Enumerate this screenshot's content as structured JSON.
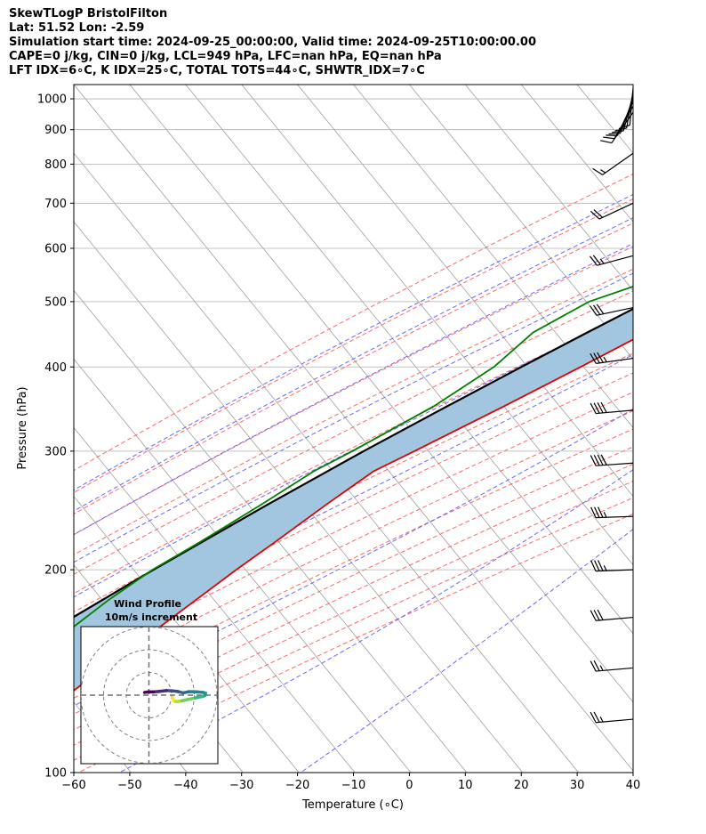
{
  "title_lines": [
    "SkewTLogP BristolFilton",
    "Lat: 51.52   Lon: -2.59",
    "Simulation start time: 2024-09-25_00:00:00, Valid time: 2024-09-25T10:00:00.00",
    "CAPE=0 j/kg, CIN=0 j/kg, LCL=949 hPa, LFC=nan hPa, EQ=nan hPa",
    "LFT IDX=6∘C, K IDX=25∘C, TOTAL TOTS=44∘C, SHWTR_IDX=7∘C"
  ],
  "chart_data": {
    "type": "skewt",
    "xlabel": "Temperature (∘C)",
    "ylabel": "Pressure (hPa)",
    "xlim": [
      -60,
      40
    ],
    "ylim": [
      1050,
      100
    ],
    "x_ticks": [
      -60,
      -50,
      -40,
      -30,
      -20,
      -10,
      0,
      10,
      20,
      30,
      40
    ],
    "x_tick_labels": [
      "−60",
      "−50",
      "−40",
      "−30",
      "−20",
      "−10",
      "0",
      "10",
      "20",
      "30",
      "40"
    ],
    "y_ticks": [
      1000,
      900,
      800,
      700,
      600,
      500,
      400,
      300,
      200,
      100
    ],
    "y_tick_labels": [
      "1000",
      "900",
      "800",
      "700",
      "600",
      "500",
      "400",
      "300",
      "200",
      "100"
    ],
    "grid": true,
    "colors": {
      "temperature": "#e00000",
      "dewpoint": "#008000",
      "parcel": "#000000",
      "cape_fill": "#a3c6e0",
      "dry_adiabat": "#ff4d4d",
      "moist_adiabat": "#4d4dff",
      "mixing_ratio": "#8a2be2",
      "isotherm": "#a0a0a0"
    },
    "series": [
      {
        "id": "temperature",
        "p": [
          1000,
          975,
          950,
          925,
          900,
          850,
          800,
          750,
          700,
          650,
          600,
          550,
          500,
          450,
          400,
          350,
          300,
          280,
          250,
          220,
          200,
          180,
          160,
          140,
          130,
          120,
          110,
          100
        ],
        "t": [
          13.7,
          11.9,
          10.6,
          10.2,
          10.3,
          10.0,
          8.2,
          5.6,
          2.7,
          -0.5,
          -4.6,
          -8.9,
          -15.1,
          -21.7,
          -28.5,
          -36.4,
          -45.9,
          -50.3,
          -53.9,
          -57.6,
          -60.5,
          -63.4,
          -66.6,
          -70.5,
          -72.4,
          -73.8,
          -74.7,
          -75.5
        ]
      },
      {
        "id": "dewpoint",
        "p": [
          1000,
          975,
          950,
          925,
          900,
          850,
          800,
          750,
          700,
          650,
          600,
          550,
          500,
          450,
          400,
          350,
          300,
          280,
          250,
          220,
          200,
          180,
          160,
          140,
          130,
          120,
          110,
          100
        ],
        "t": [
          10.5,
          10.5,
          9.5,
          7.5,
          6.0,
          4.8,
          4.0,
          2.8,
          0.2,
          -4.8,
          -12.5,
          -26.0,
          -36.5,
          -42.0,
          -44.0,
          -49.0,
          -57.0,
          -61.0,
          -65.5,
          -71.0,
          -75.5,
          -79.0,
          -82.0,
          -84.5,
          -86.5,
          -88.5,
          -91.0,
          -94.0
        ]
      },
      {
        "id": "parcel",
        "p": [
          1000,
          975,
          949,
          925,
          900,
          850,
          800,
          750,
          700,
          650,
          600,
          550,
          500,
          450,
          400,
          350,
          300,
          250,
          200,
          150,
          100
        ],
        "t": [
          12.5,
          11.1,
          9.6,
          8.3,
          6.9,
          3.9,
          0.7,
          -2.8,
          -6.6,
          -10.8,
          -15.4,
          -20.5,
          -26.1,
          -32.3,
          -39.1,
          -46.6,
          -55.0,
          -64.4,
          -75.3,
          -88.5,
          -106.3
        ]
      }
    ],
    "wind_barbs": {
      "p": [
        120,
        143,
        170,
        200,
        240,
        288,
        345,
        412,
        490,
        585,
        700,
        830,
        955,
        975,
        990,
        1002,
        1014,
        1026,
        1038
      ],
      "speed_kt": [
        25,
        25,
        30,
        35,
        35,
        40,
        40,
        35,
        30,
        25,
        20,
        15,
        10,
        10,
        10,
        10,
        10,
        10,
        10
      ],
      "direction_deg": [
        265,
        265,
        265,
        268,
        268,
        266,
        265,
        262,
        258,
        255,
        245,
        235,
        215,
        210,
        205,
        200,
        195,
        190,
        185
      ]
    },
    "hodograph": {
      "title": "Wind Profile",
      "subtitle": "10m/s increment",
      "rings_ms": [
        10,
        20,
        30
      ],
      "u": [
        10.5,
        10.7,
        11.0,
        11.8,
        12.8,
        14.5,
        17.2,
        20.5,
        24.0,
        24.8,
        25.0,
        23.8,
        21.3,
        19.8,
        17.5,
        15.1,
        12.7,
        10.0,
        7.7,
        4.4,
        1.9,
        -0.4,
        -1.9
      ],
      "v": [
        -1.1,
        -1.8,
        -2.5,
        -2.8,
        -2.8,
        -2.5,
        -1.9,
        -1.2,
        -0.5,
        0.0,
        0.9,
        1.2,
        1.4,
        1.5,
        1.5,
        1.0,
        1.6,
        1.9,
        2.0,
        1.6,
        1.4,
        1.4,
        1.2
      ],
      "colors": [
        "#fde725",
        "#b5de2b",
        "#6ece58",
        "#35b779",
        "#1f9e89",
        "#26828e",
        "#31688e",
        "#3e4989",
        "#482878",
        "#440154"
      ]
    }
  }
}
